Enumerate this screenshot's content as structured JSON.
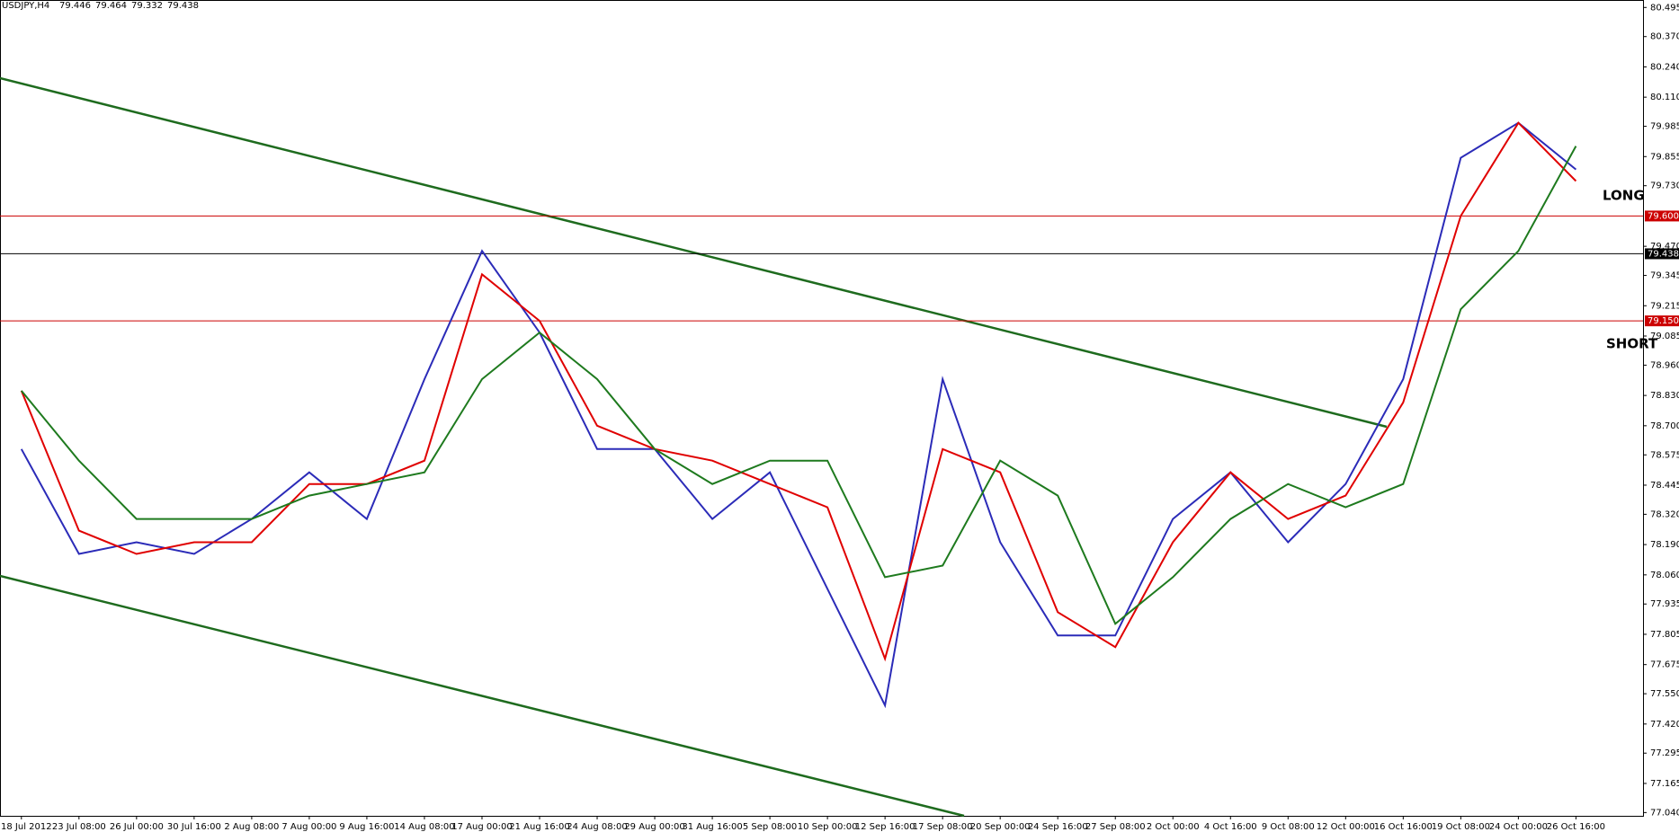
{
  "chart_data": {
    "type": "line",
    "symbol": "USDJPY,H4",
    "ohlc": [
      79.446,
      79.464,
      79.332,
      79.438
    ],
    "categories": [
      "18 Jul 2012",
      "23 Jul 08:00",
      "26 Jul 00:00",
      "30 Jul 16:00",
      "2 Aug 08:00",
      "7 Aug 00:00",
      "9 Aug 16:00",
      "14 Aug 08:00",
      "17 Aug 00:00",
      "21 Aug 16:00",
      "24 Aug 08:00",
      "29 Aug 00:00",
      "31 Aug 16:00",
      "5 Sep 08:00",
      "10 Sep 00:00",
      "12 Sep 16:00",
      "17 Sep 08:00",
      "20 Sep 00:00",
      "24 Sep 16:00",
      "27 Sep 08:00",
      "2 Oct 00:00",
      "4 Oct 16:00",
      "9 Oct 08:00",
      "12 Oct 00:00",
      "16 Oct 16:00",
      "19 Oct 08:00",
      "24 Oct 00:00",
      "26 Oct 16:00"
    ],
    "series": [
      {
        "color": "#2b2bb8",
        "values": [
          78.6,
          78.15,
          78.2,
          78.15,
          78.3,
          78.5,
          78.3,
          78.9,
          79.45,
          79.1,
          78.6,
          78.6,
          78.3,
          78.5,
          78.0,
          77.5,
          78.9,
          78.2,
          77.8,
          77.8,
          78.3,
          78.5,
          78.2,
          78.45,
          78.9,
          79.85,
          80.0,
          79.8
        ]
      },
      {
        "color": "#e00000",
        "values": [
          78.85,
          78.25,
          78.15,
          78.2,
          78.2,
          78.45,
          78.45,
          78.55,
          79.35,
          79.15,
          78.7,
          78.6,
          78.55,
          78.45,
          78.35,
          77.7,
          78.6,
          78.5,
          77.9,
          77.75,
          78.2,
          78.5,
          78.3,
          78.4,
          78.8,
          79.6,
          80.0,
          79.75
        ]
      },
      {
        "color": "#1e7a1e",
        "values": [
          78.85,
          78.55,
          78.3,
          78.3,
          78.3,
          78.4,
          78.45,
          78.5,
          78.9,
          79.1,
          78.9,
          78.6,
          78.45,
          78.55,
          78.55,
          78.05,
          78.1,
          78.55,
          78.4,
          77.85,
          78.05,
          78.3,
          78.45,
          78.35,
          78.45,
          79.2,
          79.45,
          79.9
        ]
      }
    ],
    "levels": [
      {
        "value": 79.6,
        "label": "79.600",
        "color": "#cc0000"
      },
      {
        "value": 79.15,
        "label": "79.150",
        "color": "#cc0000"
      },
      {
        "value": 79.438,
        "label": "79.438",
        "color": "#000000"
      }
    ],
    "annotations": [
      "LONG",
      "SHORT"
    ],
    "ylim": [
      77.026,
      80.527
    ],
    "yticks": [
      {
        "value": 80.495,
        "label": "80.495"
      },
      {
        "value": 80.37,
        "label": "80.370"
      },
      {
        "value": 80.24,
        "label": "80.240"
      },
      {
        "value": 80.11,
        "label": "80.110"
      },
      {
        "value": 79.985,
        "label": "79.985"
      },
      {
        "value": 79.855,
        "label": "79.855"
      },
      {
        "value": 79.73,
        "label": "79.730"
      },
      {
        "value": 79.47,
        "label": "79.470"
      },
      {
        "value": 79.345,
        "label": "79.345"
      },
      {
        "value": 79.215,
        "label": "79.215"
      },
      {
        "value": 79.085,
        "label": "79.085"
      },
      {
        "value": 78.96,
        "label": "78.960"
      },
      {
        "value": 78.83,
        "label": "78.830"
      },
      {
        "value": 78.7,
        "label": "78.700"
      },
      {
        "value": 78.575,
        "label": "78.575"
      },
      {
        "value": 78.445,
        "label": "78.445"
      },
      {
        "value": 78.32,
        "label": "78.320"
      },
      {
        "value": 78.19,
        "label": "78.190"
      },
      {
        "value": 78.06,
        "label": "78.060"
      },
      {
        "value": 77.935,
        "label": "77.935"
      },
      {
        "value": 77.805,
        "label": "77.805"
      },
      {
        "value": 77.675,
        "label": "77.675"
      },
      {
        "value": 77.55,
        "label": "77.550"
      },
      {
        "value": 77.42,
        "label": "77.420"
      },
      {
        "value": 77.295,
        "label": "77.295"
      },
      {
        "value": 77.165,
        "label": "77.165"
      },
      {
        "value": 77.04,
        "label": "77.040"
      }
    ],
    "grid": false
  }
}
